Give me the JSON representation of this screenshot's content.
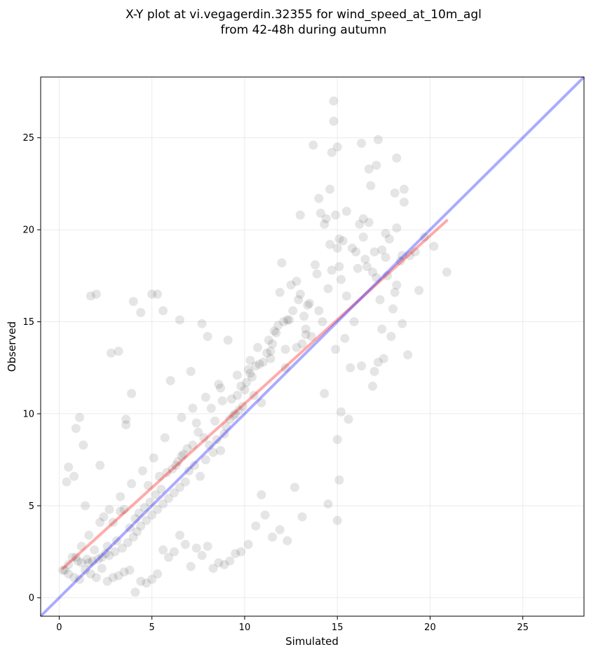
{
  "chart_data": {
    "type": "scatter",
    "title_lines": [
      "X-Y plot at vi.vegagerdin.32355 for wind_speed_at_10m_agl",
      "from 42-48h during autumn"
    ],
    "xlabel": "Simulated",
    "ylabel": "Observed",
    "xlim": [
      -1,
      28.3
    ],
    "ylim": [
      -1,
      28.3
    ],
    "xticks": [
      0,
      5,
      10,
      15,
      20,
      25
    ],
    "yticks": [
      0,
      5,
      10,
      15,
      20,
      25
    ],
    "grid": true,
    "point_color": "#000000",
    "point_opacity": 0.1,
    "fit_line": {
      "color": "#ff0000",
      "opacity": 0.33,
      "x": [
        0.2,
        20.9
      ],
      "y": [
        1.6,
        20.5
      ]
    },
    "identity_line": {
      "color": "#0000ff",
      "opacity": 0.33,
      "x": [
        -1,
        28.3
      ],
      "y": [
        -1,
        28.3
      ]
    },
    "series": [
      {
        "x": [
          14.8,
          14.8,
          14.7,
          15.0,
          13.7,
          14.6,
          14.0,
          16.3,
          17.2,
          14.1,
          16.8,
          17.1,
          16.7,
          18.2,
          18.6,
          18.1,
          18.6,
          17.6,
          14.9,
          13.0,
          14.3,
          15.5,
          14.4,
          15.1,
          16.4,
          16.2,
          16.4,
          16.7,
          18.2,
          17.0,
          20.2,
          20.9,
          19.4,
          18.5,
          18.2,
          18.1,
          17.6,
          17.7,
          17.3,
          18.0,
          18.5,
          17.4,
          18.8,
          17.9,
          17.5,
          16.9,
          17.2,
          17.0,
          16.3,
          15.7,
          15.2,
          15.0,
          14.3,
          15.9,
          15.4,
          15.5,
          15.2,
          15.1,
          14.5,
          14.7,
          15.0,
          12.0,
          11.9,
          12.8,
          12.5,
          13.0,
          13.5,
          14.0,
          14.2,
          13.3,
          13.6,
          12.3,
          13.1,
          12.2,
          11.3,
          11.4,
          11.0,
          10.6,
          10.3,
          10.1,
          10.0,
          10.5,
          10.9,
          9.9,
          9.5,
          9.2,
          9.0,
          9.4,
          8.9,
          8.5,
          8.1,
          8.3,
          8.7,
          7.9,
          7.3,
          7.0,
          7.6,
          6.8,
          6.5,
          6.2,
          5.9,
          5.6,
          5.3,
          5.0,
          4.7,
          4.4,
          4.2,
          4.0,
          3.7,
          3.4,
          3.0,
          2.7,
          2.3,
          2.1,
          1.8,
          1.6,
          1.2,
          1.0,
          0.7,
          0.5,
          0.3,
          1.7,
          2.0,
          4.0,
          5.0,
          5.3,
          4.4,
          2.8,
          3.2,
          6.5,
          5.6,
          7.7,
          8.0,
          9.1,
          7.1,
          6.0,
          3.6,
          3.9,
          3.6,
          2.2,
          1.3,
          1.1,
          0.9,
          0.8,
          0.5,
          0.4,
          1.4,
          2.4,
          2.9,
          3.3,
          3.5,
          4.8,
          5.4,
          6.1,
          6.3,
          6.6,
          7.2,
          7.5,
          7.4,
          8.2,
          8.8,
          9.6,
          9.8,
          10.8,
          11.2,
          11.5,
          11.7,
          11.8,
          12.4,
          12.6,
          12.9,
          13.2,
          13.4,
          12.1,
          11.6,
          10.7,
          10.4,
          10.2,
          9.7,
          9.3,
          8.6,
          8.4,
          7.8,
          6.9,
          6.7,
          6.4,
          5.8,
          5.5,
          5.2,
          4.9,
          4.6,
          4.3,
          4.1,
          3.8,
          3.1,
          2.6,
          2.5,
          1.9,
          1.5,
          13.8,
          13.9,
          14.6,
          15.3,
          15.8,
          16.0,
          16.5,
          16.1,
          16.6,
          16.9,
          17.1,
          17.4,
          17.8,
          18.4,
          18.9,
          19.2,
          19.7,
          15.6,
          14.9,
          15.1,
          15.0,
          14.5,
          13.1,
          12.7,
          12.3,
          11.9,
          11.5,
          11.1,
          10.9,
          10.6,
          10.2,
          9.8,
          9.5,
          9.2,
          8.9,
          8.6,
          8.3,
          8.0,
          7.7,
          7.4,
          7.1,
          6.8,
          6.5,
          6.2,
          5.9,
          5.6,
          5.3,
          5.0,
          4.7,
          4.4,
          4.1,
          3.8,
          3.5,
          3.2,
          2.9,
          2.6,
          2.3,
          2.0,
          1.7,
          1.4,
          1.1,
          0.8,
          0.5,
          0.2,
          12.2,
          12.8,
          13.3,
          11.4,
          10.3,
          9.6,
          8.7,
          7.9,
          7.2,
          6.6,
          5.7,
          5.1,
          4.5,
          3.9,
          3.3,
          2.7,
          2.2,
          1.6,
          1.2,
          0.9
        ],
        "y": [
          27.0,
          25.9,
          24.2,
          24.5,
          24.6,
          22.2,
          21.7,
          24.7,
          24.9,
          20.9,
          22.4,
          23.5,
          23.3,
          23.9,
          22.2,
          22.0,
          21.5,
          19.8,
          20.8,
          20.8,
          20.3,
          21.0,
          20.6,
          19.5,
          20.6,
          20.3,
          19.6,
          20.4,
          20.1,
          18.8,
          19.1,
          17.7,
          16.7,
          18.6,
          17.0,
          16.6,
          18.5,
          17.5,
          16.2,
          15.7,
          14.9,
          14.6,
          13.2,
          14.2,
          13.0,
          11.5,
          12.8,
          12.3,
          12.6,
          12.5,
          10.1,
          8.6,
          11.1,
          15.0,
          14.1,
          16.4,
          17.3,
          18.0,
          16.8,
          17.8,
          19.0,
          18.2,
          16.6,
          17.2,
          17.0,
          16.5,
          16.0,
          15.6,
          15.0,
          14.6,
          14.2,
          15.1,
          13.8,
          13.5,
          14.0,
          13.4,
          12.8,
          12.6,
          12.2,
          11.7,
          11.3,
          11.0,
          10.6,
          10.4,
          10.0,
          9.7,
          9.3,
          9.9,
          8.9,
          8.6,
          8.3,
          7.9,
          8.0,
          7.5,
          7.2,
          6.9,
          6.6,
          6.3,
          6.0,
          5.7,
          5.4,
          5.1,
          4.8,
          4.5,
          4.2,
          3.9,
          3.6,
          3.3,
          3.0,
          2.7,
          2.5,
          2.3,
          2.2,
          2.1,
          2.0,
          1.9,
          1.9,
          2.0,
          2.2,
          1.8,
          1.5,
          16.4,
          16.5,
          16.1,
          16.5,
          16.5,
          15.5,
          13.3,
          13.4,
          15.1,
          15.6,
          14.9,
          14.2,
          14.0,
          12.3,
          11.8,
          9.7,
          11.1,
          9.4,
          7.2,
          8.3,
          9.8,
          9.2,
          6.6,
          7.1,
          6.3,
          5.0,
          4.4,
          4.1,
          4.7,
          4.8,
          6.1,
          6.6,
          7.0,
          7.2,
          7.7,
          8.3,
          9.0,
          9.5,
          10.3,
          10.7,
          11.0,
          11.5,
          12.7,
          13.3,
          13.8,
          14.4,
          14.8,
          15.1,
          15.6,
          16.2,
          15.3,
          15.9,
          15.0,
          14.5,
          13.6,
          12.0,
          12.4,
          10.2,
          10.8,
          11.6,
          9.6,
          8.7,
          8.1,
          7.8,
          7.4,
          6.8,
          5.9,
          5.6,
          5.2,
          4.9,
          4.6,
          4.3,
          3.8,
          3.1,
          2.8,
          2.4,
          2.6,
          2.1,
          18.1,
          17.6,
          19.2,
          19.4,
          19.0,
          18.8,
          18.4,
          17.9,
          18.0,
          17.7,
          17.4,
          18.9,
          19.5,
          18.3,
          18.6,
          18.8,
          19.6,
          9.7,
          13.5,
          6.4,
          4.2,
          5.1,
          4.4,
          6.0,
          3.1,
          3.7,
          3.3,
          4.5,
          5.6,
          3.9,
          2.9,
          2.5,
          2.4,
          2.0,
          1.8,
          1.9,
          1.6,
          2.8,
          2.3,
          2.7,
          1.7,
          2.9,
          3.4,
          2.5,
          2.2,
          2.6,
          1.3,
          1.0,
          0.8,
          0.9,
          0.3,
          1.5,
          1.4,
          1.2,
          1.1,
          0.9,
          1.6,
          1.1,
          1.3,
          1.5,
          1.0,
          1.1,
          1.3,
          1.5,
          12.5,
          13.6,
          14.3,
          13.0,
          12.9,
          12.1,
          11.4,
          10.9,
          10.3,
          9.8,
          8.7,
          7.6,
          6.9,
          6.2,
          5.5,
          4.8,
          4.1,
          3.4,
          2.8,
          2.2
        ]
      }
    ]
  }
}
